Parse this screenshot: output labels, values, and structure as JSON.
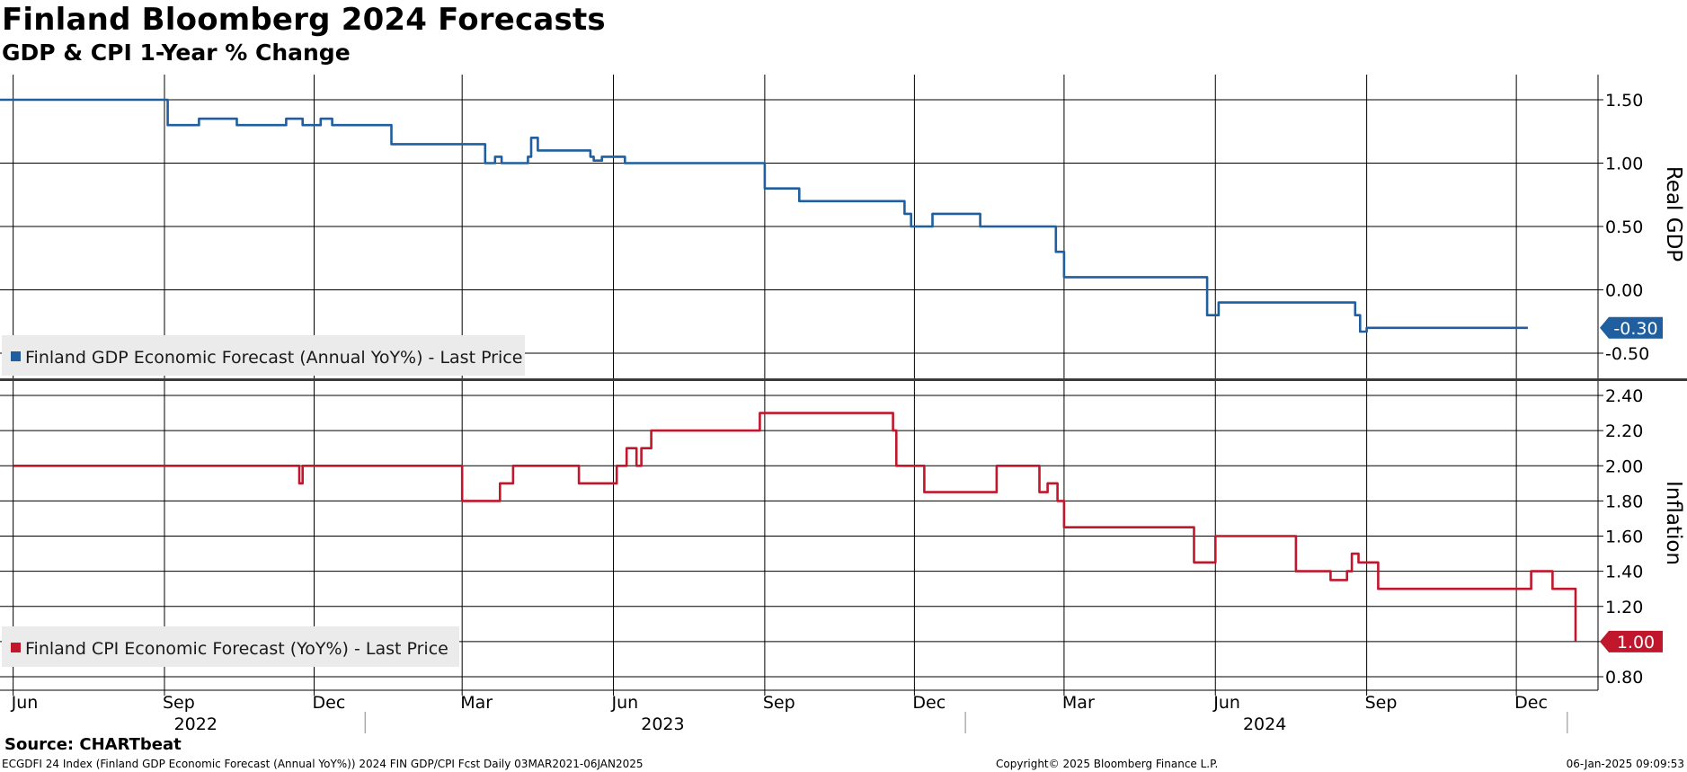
{
  "title": "Finland Bloomberg 2024 Forecasts",
  "subtitle": "GDP & CPI 1-Year % Change",
  "source": "Source: CHARTbeat",
  "footer": {
    "left": "ECGDFI 24 Index (Finland GDP Economic Forecast (Annual YoY%)) 2024 FIN GDP/CPI Fcst  Daily 03MAR2021-06JAN2025",
    "center": "Copyright© 2025 Bloomberg Finance L.P.",
    "right": "06-Jan-2025 09:09:53"
  },
  "chart_data": [
    {
      "type": "line",
      "ylabel": "Real GDP",
      "ylim": [
        -0.6,
        1.65
      ],
      "yticks": [
        1.5,
        1.0,
        0.5,
        0.0,
        -0.5
      ],
      "ytick_labels": [
        "1.50",
        "1.00",
        "0.50",
        "0.00",
        "-0.50"
      ],
      "grid": true,
      "legend_position": "bottom-left",
      "color": "#1f5fa0",
      "last_value_label": "-0.30",
      "series": [
        {
          "name": "Finland GDP Economic Forecast (Annual YoY%) - Last Price",
          "x": [
            "2022-05-24",
            "2022-08-27",
            "2022-09-03",
            "2022-09-22",
            "2022-10-15",
            "2022-11-14",
            "2022-11-24",
            "2022-12-05",
            "2022-12-12",
            "2022-12-17",
            "2023-01-17",
            "2023-02-20",
            "2023-03-15",
            "2023-03-21",
            "2023-03-25",
            "2023-04-10",
            "2023-04-12",
            "2023-04-16",
            "2023-04-28",
            "2023-05-18",
            "2023-05-20",
            "2023-05-25",
            "2023-06-08",
            "2023-08-28",
            "2023-09-01",
            "2023-09-22",
            "2023-11-20",
            "2023-11-25",
            "2023-11-29",
            "2023-12-12",
            "2023-12-23",
            "2024-01-10",
            "2024-02-21",
            "2024-02-25",
            "2024-03-01",
            "2024-05-17",
            "2024-05-27",
            "2024-06-03",
            "2024-08-25",
            "2024-08-28",
            "2024-09-01",
            "2024-12-08"
          ],
          "y": [
            1.5,
            1.5,
            1.3,
            1.35,
            1.3,
            1.35,
            1.3,
            1.35,
            1.3,
            1.3,
            1.15,
            1.15,
            1.0,
            1.05,
            1.0,
            1.05,
            1.2,
            1.1,
            1.1,
            1.05,
            1.02,
            1.05,
            1.0,
            1.0,
            0.8,
            0.7,
            0.7,
            0.6,
            0.5,
            0.6,
            0.6,
            0.5,
            0.5,
            0.3,
            0.1,
            0.1,
            -0.2,
            -0.1,
            -0.2,
            -0.33,
            -0.3,
            -0.3
          ],
          "end_date": "2025-01-06",
          "end_value": -0.3
        }
      ]
    },
    {
      "type": "line",
      "ylabel": "Inflation",
      "ylim": [
        0.75,
        2.45
      ],
      "yticks": [
        2.4,
        2.2,
        2.0,
        1.8,
        1.6,
        1.4,
        1.2,
        1.0,
        0.8
      ],
      "ytick_labels": [
        "2.40",
        "2.20",
        "2.00",
        "1.80",
        "1.60",
        "1.40",
        "1.20",
        "1.00",
        "0.80"
      ],
      "grid": true,
      "legend_position": "bottom-left",
      "color": "#c0172c",
      "last_value_label": "1.00",
      "series": [
        {
          "name": "Finland CPI Economic Forecast (YoY%) - Last Price",
          "x": [
            "2022-06-01",
            "2022-11-20",
            "2022-11-22",
            "2022-11-24",
            "2023-02-28",
            "2023-03-01",
            "2023-03-22",
            "2023-03-24",
            "2023-04-01",
            "2023-05-09",
            "2023-05-11",
            "2023-05-31",
            "2023-06-03",
            "2023-06-08",
            "2023-06-09",
            "2023-06-15",
            "2023-06-18",
            "2023-06-24",
            "2023-08-25",
            "2023-08-29",
            "2023-11-14",
            "2023-11-18",
            "2023-11-20",
            "2023-12-05",
            "2023-12-07",
            "2024-01-18",
            "2024-01-20",
            "2024-02-13",
            "2024-02-15",
            "2024-02-20",
            "2024-02-26",
            "2024-03-01",
            "2024-05-15",
            "2024-05-19",
            "2024-06-01",
            "2024-06-06",
            "2024-07-20",
            "2024-07-26",
            "2024-08-10",
            "2024-08-20",
            "2024-08-23",
            "2024-08-27",
            "2024-09-08",
            "2024-09-13",
            "2024-12-07",
            "2024-12-10",
            "2024-12-20",
            "2024-12-23",
            "2025-01-06"
          ],
          "y": [
            2.0,
            2.0,
            1.9,
            2.0,
            2.0,
            1.8,
            1.8,
            1.9,
            2.0,
            2.0,
            1.9,
            1.9,
            2.0,
            2.0,
            2.1,
            2.0,
            2.1,
            2.2,
            2.2,
            2.3,
            2.3,
            2.2,
            2.0,
            2.0,
            1.85,
            1.85,
            2.0,
            2.0,
            1.85,
            1.9,
            1.8,
            1.65,
            1.65,
            1.45,
            1.6,
            1.6,
            1.4,
            1.4,
            1.35,
            1.4,
            1.5,
            1.45,
            1.3,
            1.3,
            1.3,
            1.4,
            1.4,
            1.3,
            1.0
          ],
          "end_date": "2025-01-06",
          "end_value": 1.0
        }
      ]
    }
  ],
  "x_axis": {
    "months": [
      {
        "date": "2022-06-01",
        "label": "Jun"
      },
      {
        "date": "2022-09-01",
        "label": "Sep"
      },
      {
        "date": "2022-12-01",
        "label": "Dec"
      },
      {
        "date": "2023-03-01",
        "label": "Mar"
      },
      {
        "date": "2023-06-01",
        "label": "Jun"
      },
      {
        "date": "2023-09-01",
        "label": "Sep"
      },
      {
        "date": "2023-12-01",
        "label": "Dec"
      },
      {
        "date": "2024-03-01",
        "label": "Mar"
      },
      {
        "date": "2024-06-01",
        "label": "Jun"
      },
      {
        "date": "2024-09-01",
        "label": "Sep"
      },
      {
        "date": "2024-12-01",
        "label": "Dec"
      }
    ],
    "years": [
      {
        "date": "2022-09-20",
        "label": "2022"
      },
      {
        "date": "2023-07-01",
        "label": "2023"
      },
      {
        "date": "2024-07-01",
        "label": "2024"
      }
    ],
    "year_separators": [
      "2023-01-01",
      "2024-01-01",
      "2025-01-01"
    ]
  }
}
